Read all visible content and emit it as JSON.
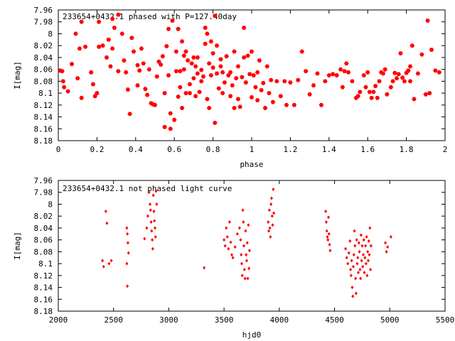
{
  "colors": {
    "points": "#ff0000",
    "axis": "#000000",
    "background": "#ffffff"
  },
  "chart_data": [
    {
      "type": "scatter",
      "title": "233654+0432.1 phased with P=127.40day",
      "xlabel": "phase",
      "ylabel": "I[mag]",
      "xlim": [
        0,
        2
      ],
      "ylim": [
        8.18,
        7.96
      ],
      "y_inverted": true,
      "x_ticks": [
        "0",
        "0.2",
        "0.4",
        "0.6",
        "0.8",
        "1",
        "1.2",
        "1.4",
        "1.6",
        "1.8",
        "2"
      ],
      "y_ticks": [
        "7.96",
        "7.98",
        "8",
        "8.02",
        "8.04",
        "8.06",
        "8.08",
        "8.1",
        "8.12",
        "8.14",
        "8.16",
        "8.18"
      ],
      "grid": false,
      "legend": "none",
      "marker": "star",
      "points": [
        [
          0.01,
          8.062
        ],
        [
          0.02,
          8.063
        ],
        [
          0.025,
          8.08
        ],
        [
          0.03,
          8.09
        ],
        [
          0.05,
          8.097
        ],
        [
          0.07,
          8.051
        ],
        [
          0.09,
          8.0
        ],
        [
          0.1,
          8.075
        ],
        [
          0.11,
          8.025
        ],
        [
          0.12,
          8.108
        ],
        [
          0.12,
          7.98
        ],
        [
          0.14,
          8.022
        ],
        [
          0.17,
          8.065
        ],
        [
          0.18,
          8.085
        ],
        [
          0.19,
          8.105
        ],
        [
          0.2,
          8.1
        ],
        [
          0.21,
          8.022
        ],
        [
          0.21,
          7.98
        ],
        [
          0.23,
          8.02
        ],
        [
          0.25,
          8.04
        ],
        [
          0.26,
          8.01
        ],
        [
          0.27,
          8.055
        ],
        [
          0.28,
          7.975
        ],
        [
          0.28,
          8.025
        ],
        [
          0.29,
          7.99
        ],
        [
          0.31,
          8.063
        ],
        [
          0.31,
          7.968
        ],
        [
          0.33,
          8.0
        ],
        [
          0.34,
          8.045
        ],
        [
          0.35,
          8.065
        ],
        [
          0.36,
          8.094
        ],
        [
          0.37,
          8.135
        ],
        [
          0.38,
          8.007
        ],
        [
          0.39,
          8.03
        ],
        [
          0.41,
          8.053
        ],
        [
          0.41,
          8.087
        ],
        [
          0.42,
          8.062
        ],
        [
          0.43,
          8.025
        ],
        [
          0.44,
          8.05
        ],
        [
          0.45,
          8.093
        ],
        [
          0.46,
          8.103
        ],
        [
          0.47,
          8.06
        ],
        [
          0.48,
          8.117
        ],
        [
          0.49,
          8.119
        ],
        [
          0.5,
          8.12
        ],
        [
          0.51,
          8.072
        ],
        [
          0.52,
          8.047
        ],
        [
          0.53,
          8.052
        ],
        [
          0.54,
          8.038
        ],
        [
          0.55,
          8.1
        ],
        [
          0.55,
          8.157
        ],
        [
          0.56,
          8.021
        ],
        [
          0.57,
          8.07
        ],
        [
          0.57,
          7.992
        ],
        [
          0.58,
          8.134
        ],
        [
          0.58,
          8.16
        ],
        [
          0.59,
          7.978
        ],
        [
          0.6,
          8.145
        ],
        [
          0.61,
          8.03
        ],
        [
          0.61,
          8.063
        ],
        [
          0.62,
          8.106
        ],
        [
          0.62,
          7.992
        ],
        [
          0.63,
          8.063
        ],
        [
          0.63,
          8.09
        ],
        [
          0.64,
          8.125
        ],
        [
          0.64,
          8.013
        ],
        [
          0.65,
          8.037
        ],
        [
          0.65,
          8.06
        ],
        [
          0.66,
          8.03
        ],
        [
          0.66,
          8.1
        ],
        [
          0.67,
          8.045
        ],
        [
          0.68,
          8.085
        ],
        [
          0.68,
          8.1
        ],
        [
          0.69,
          8.05
        ],
        [
          0.7,
          8.075
        ],
        [
          0.7,
          8.04
        ],
        [
          0.71,
          8.055
        ],
        [
          0.71,
          8.105
        ],
        [
          0.72,
          8.067
        ],
        [
          0.72,
          8.04
        ],
        [
          0.73,
          8.098
        ],
        [
          0.74,
          8.08
        ],
        [
          0.74,
          8.061
        ],
        [
          0.75,
          8.072
        ],
        [
          0.76,
          8.017
        ],
        [
          0.76,
          7.99
        ],
        [
          0.77,
          8.11
        ],
        [
          0.77,
          8.0
        ],
        [
          0.78,
          8.05
        ],
        [
          0.78,
          8.125
        ],
        [
          0.79,
          8.07
        ],
        [
          0.79,
          8.013
        ],
        [
          0.8,
          8.057
        ],
        [
          0.8,
          8.033
        ],
        [
          0.81,
          7.97
        ],
        [
          0.81,
          8.15
        ],
        [
          0.82,
          8.067
        ],
        [
          0.82,
          8.02
        ],
        [
          0.83,
          8.092
        ],
        [
          0.84,
          8.055
        ],
        [
          0.84,
          8.043
        ],
        [
          0.85,
          8.065
        ],
        [
          0.85,
          8.1
        ],
        [
          0.86,
          8.082
        ],
        [
          0.87,
          8.038
        ],
        [
          0.88,
          8.07
        ],
        [
          0.89,
          8.105
        ],
        [
          0.89,
          8.065
        ],
        [
          0.9,
          8.087
        ],
        [
          0.91,
          8.125
        ],
        [
          0.91,
          8.03
        ],
        [
          0.92,
          8.075
        ],
        [
          0.93,
          8.11
        ],
        [
          0.93,
          8.055
        ],
        [
          0.94,
          8.123
        ],
        [
          0.95,
          8.073
        ],
        [
          0.96,
          7.99
        ],
        [
          0.96,
          8.04
        ],
        [
          0.97,
          8.082
        ],
        [
          0.98,
          8.037
        ],
        [
          0.99,
          8.068
        ],
        [
          1.0,
          8.107
        ],
        [
          1.0,
          8.03
        ],
        [
          1.01,
          8.07
        ],
        [
          1.02,
          8.09
        ],
        [
          1.03,
          8.112
        ],
        [
          1.03,
          8.065
        ],
        [
          1.04,
          8.045
        ],
        [
          1.05,
          8.095
        ],
        [
          1.06,
          8.083
        ],
        [
          1.07,
          8.125
        ],
        [
          1.08,
          8.055
        ],
        [
          1.09,
          8.1
        ],
        [
          1.1,
          8.078
        ],
        [
          1.11,
          8.115
        ],
        [
          1.13,
          8.08
        ],
        [
          1.15,
          8.105
        ],
        [
          1.17,
          8.08
        ],
        [
          1.18,
          8.12
        ],
        [
          1.2,
          8.082
        ],
        [
          1.22,
          8.12
        ],
        [
          1.24,
          8.078
        ],
        [
          1.26,
          8.03
        ],
        [
          1.28,
          8.063
        ],
        [
          1.3,
          8.102
        ],
        [
          1.32,
          8.087
        ],
        [
          1.34,
          8.067
        ],
        [
          1.36,
          8.12
        ],
        [
          1.38,
          8.08
        ],
        [
          1.4,
          8.07
        ],
        [
          1.42,
          8.068
        ],
        [
          1.44,
          8.07
        ],
        [
          1.46,
          8.06
        ],
        [
          1.47,
          8.09
        ],
        [
          1.48,
          8.063
        ],
        [
          1.49,
          8.05
        ],
        [
          1.5,
          8.065
        ],
        [
          1.52,
          8.08
        ],
        [
          1.54,
          8.108
        ],
        [
          1.55,
          8.105
        ],
        [
          1.56,
          8.098
        ],
        [
          1.58,
          8.07
        ],
        [
          1.59,
          8.09
        ],
        [
          1.6,
          8.065
        ],
        [
          1.61,
          8.098
        ],
        [
          1.62,
          8.108
        ],
        [
          1.63,
          8.098
        ],
        [
          1.64,
          8.088
        ],
        [
          1.65,
          8.108
        ],
        [
          1.66,
          8.08
        ],
        [
          1.67,
          8.065
        ],
        [
          1.68,
          8.067
        ],
        [
          1.69,
          8.06
        ],
        [
          1.7,
          8.102
        ],
        [
          1.72,
          8.09
        ],
        [
          1.73,
          8.08
        ],
        [
          1.74,
          8.066
        ],
        [
          1.75,
          8.075
        ],
        [
          1.76,
          8.068
        ],
        [
          1.77,
          8.033
        ],
        [
          1.78,
          8.074
        ],
        [
          1.79,
          8.08
        ],
        [
          1.8,
          8.066
        ],
        [
          1.81,
          8.062
        ],
        [
          1.82,
          8.08
        ],
        [
          1.82,
          8.055
        ],
        [
          1.83,
          8.02
        ],
        [
          1.84,
          8.11
        ],
        [
          1.86,
          8.067
        ],
        [
          1.88,
          8.035
        ],
        [
          1.9,
          8.102
        ],
        [
          1.91,
          7.978
        ],
        [
          1.92,
          8.1
        ],
        [
          1.93,
          8.027
        ],
        [
          1.95,
          8.062
        ],
        [
          1.97,
          8.065
        ]
      ]
    },
    {
      "type": "scatter",
      "title": "233654+0432.1 not phased light curve",
      "xlabel": "hjd0",
      "ylabel": "I[mag]",
      "xlim": [
        2000,
        5500
      ],
      "ylim": [
        8.18,
        7.96
      ],
      "y_inverted": true,
      "x_ticks": [
        "2000",
        "2500",
        "3000",
        "3500",
        "4000",
        "4500",
        "5000",
        "5500"
      ],
      "y_ticks": [
        "7.96",
        "7.98",
        "8",
        "8.02",
        "8.04",
        "8.06",
        "8.08",
        "8.1",
        "8.12",
        "8.14",
        "8.16",
        "8.18"
      ],
      "grid": false,
      "legend": "none",
      "marker": "diamond",
      "points": [
        [
          2400,
          8.095
        ],
        [
          2410,
          8.105
        ],
        [
          2430,
          8.012
        ],
        [
          2440,
          8.032
        ],
        [
          2460,
          8.1
        ],
        [
          2480,
          8.095
        ],
        [
          2620,
          8.04
        ],
        [
          2625,
          8.05
        ],
        [
          2630,
          8.065
        ],
        [
          2635,
          8.082
        ],
        [
          2620,
          8.1
        ],
        [
          2625,
          8.138
        ],
        [
          2780,
          8.058
        ],
        [
          2800,
          8.04
        ],
        [
          2810,
          8.02
        ],
        [
          2820,
          7.98
        ],
        [
          2830,
          8.0
        ],
        [
          2835,
          8.01
        ],
        [
          2840,
          8.03
        ],
        [
          2845,
          8.045
        ],
        [
          2850,
          8.06
        ],
        [
          2855,
          8.075
        ],
        [
          2860,
          7.985
        ],
        [
          2865,
          8.012
        ],
        [
          2870,
          8.028
        ],
        [
          2875,
          8.04
        ],
        [
          2880,
          8.055
        ],
        [
          2885,
          7.978
        ],
        [
          2890,
          8.0
        ],
        [
          3320,
          8.107
        ],
        [
          3500,
          8.06
        ],
        [
          3510,
          8.07
        ],
        [
          3520,
          8.04
        ],
        [
          3530,
          8.055
        ],
        [
          3540,
          8.075
        ],
        [
          3550,
          8.03
        ],
        [
          3560,
          8.064
        ],
        [
          3570,
          8.085
        ],
        [
          3580,
          8.09
        ],
        [
          3600,
          8.072
        ],
        [
          3620,
          8.05
        ],
        [
          3640,
          8.04
        ],
        [
          3650,
          8.06
        ],
        [
          3655,
          8.085
        ],
        [
          3660,
          8.1
        ],
        [
          3665,
          8.12
        ],
        [
          3670,
          8.01
        ],
        [
          3675,
          8.03
        ],
        [
          3680,
          8.07
        ],
        [
          3685,
          8.11
        ],
        [
          3690,
          8.125
        ],
        [
          3695,
          8.045
        ],
        [
          3700,
          8.085
        ],
        [
          3705,
          8.095
        ],
        [
          3710,
          8.065
        ],
        [
          3715,
          8.125
        ],
        [
          3720,
          8.035
        ],
        [
          3725,
          8.108
        ],
        [
          3730,
          8.078
        ],
        [
          3900,
          8.03
        ],
        [
          3905,
          8.045
        ],
        [
          3910,
          8.01
        ],
        [
          3915,
          8.04
        ],
        [
          3920,
          8.055
        ],
        [
          3925,
          8.0
        ],
        [
          3930,
          7.99
        ],
        [
          3935,
          8.02
        ],
        [
          3940,
          8.035
        ],
        [
          3945,
          7.975
        ],
        [
          3950,
          8.015
        ],
        [
          4420,
          8.012
        ],
        [
          4425,
          8.03
        ],
        [
          4430,
          8.045
        ],
        [
          4435,
          8.055
        ],
        [
          4440,
          8.06
        ],
        [
          4445,
          8.022
        ],
        [
          4450,
          8.05
        ],
        [
          4455,
          8.068
        ],
        [
          4460,
          8.078
        ],
        [
          4600,
          8.075
        ],
        [
          4610,
          8.09
        ],
        [
          4620,
          8.1
        ],
        [
          4630,
          8.082
        ],
        [
          4640,
          8.062
        ],
        [
          4645,
          8.11
        ],
        [
          4650,
          8.12
        ],
        [
          4655,
          8.095
        ],
        [
          4660,
          8.14
        ],
        [
          4665,
          8.155
        ],
        [
          4670,
          8.105
        ],
        [
          4675,
          8.085
        ],
        [
          4680,
          8.045
        ],
        [
          4685,
          8.07
        ],
        [
          4690,
          8.125
        ],
        [
          4695,
          8.15
        ],
        [
          4700,
          8.06
        ],
        [
          4705,
          8.1
        ],
        [
          4710,
          8.09
        ],
        [
          4715,
          8.115
        ],
        [
          4720,
          8.065
        ],
        [
          4725,
          8.08
        ],
        [
          4730,
          8.11
        ],
        [
          4735,
          8.125
        ],
        [
          4740,
          8.052
        ],
        [
          4745,
          8.095
        ],
        [
          4750,
          8.07
        ],
        [
          4755,
          8.105
        ],
        [
          4760,
          8.085
        ],
        [
          4765,
          8.06
        ],
        [
          4770,
          8.115
        ],
        [
          4775,
          8.09
        ],
        [
          4780,
          8.07
        ],
        [
          4785,
          8.1
        ],
        [
          4790,
          8.055
        ],
        [
          4795,
          8.12
        ],
        [
          4800,
          8.08
        ],
        [
          4805,
          8.095
        ],
        [
          4810,
          8.062
        ],
        [
          4815,
          8.085
        ],
        [
          4820,
          8.04
        ],
        [
          4825,
          8.11
        ],
        [
          4830,
          8.07
        ],
        [
          4960,
          8.065
        ],
        [
          4970,
          8.08
        ],
        [
          4980,
          8.072
        ],
        [
          5010,
          8.055
        ]
      ]
    }
  ]
}
